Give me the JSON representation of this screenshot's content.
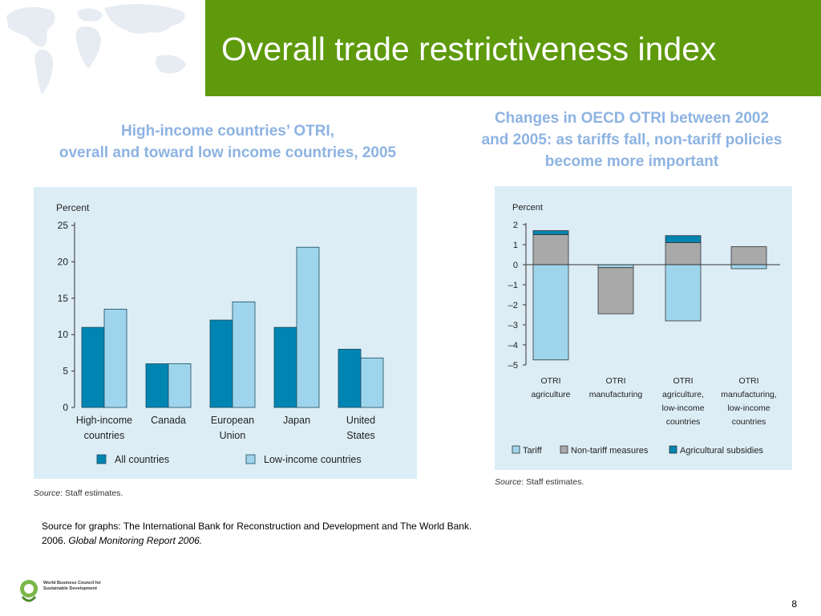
{
  "slide": {
    "title": "Overall trade restrictiveness index",
    "page_number": "8",
    "footer_source_prefix": "Source for graphs: The International Bank for Reconstruction and Development and The World Bank.",
    "footer_source_year": "2006.",
    "footer_source_italic": "Global Monitoring Report 2006.",
    "logo_line1": "World Business Council for",
    "logo_line2": "Sustainable Development",
    "colors": {
      "title_bar": "#5e9a0c",
      "heading": "#8db3e2",
      "panel_bg": "#dcedf6"
    }
  },
  "left_chart": {
    "heading_line1": "High-income countries’ OTRI,",
    "heading_line2": "overall and toward low income countries, 2005",
    "source_label": "Source",
    "source_text": ": Staff estimates."
  },
  "right_chart": {
    "heading_line1": "Changes in OECD OTRI between 2002",
    "heading_line2": "and 2005: as tariffs fall, non-tariff policies",
    "heading_line3": "become more important",
    "source_label": "Source",
    "source_text": ": Staff estimates."
  },
  "chart_data": [
    {
      "type": "bar",
      "ylabel": "Percent",
      "ylim": [
        0,
        25
      ],
      "yticks": [
        0,
        5,
        10,
        15,
        20,
        25
      ],
      "categories": [
        [
          "High-income",
          "countries"
        ],
        [
          "Canada"
        ],
        [
          "European",
          "Union"
        ],
        [
          "Japan"
        ],
        [
          "United",
          "States"
        ]
      ],
      "series": [
        {
          "name": "All countries",
          "color": "#0085b2",
          "values": [
            11,
            6,
            12,
            11,
            8
          ]
        },
        {
          "name": "Low-income countries",
          "color": "#9fd5ec",
          "values": [
            13.5,
            6,
            14.5,
            22,
            6.8
          ]
        }
      ],
      "legend": "bottom"
    },
    {
      "type": "bar",
      "stacked": true,
      "ylabel": "Percent",
      "ylim": [
        -5,
        2
      ],
      "yticks": [
        2,
        1,
        0,
        -1,
        -2,
        -3,
        -4,
        -5
      ],
      "ytick_labels": [
        "2",
        "1",
        "0",
        "–1",
        "–2",
        "–3",
        "–4",
        "–5"
      ],
      "categories": [
        [
          "OTRI",
          "agriculture"
        ],
        [
          "OTRI",
          "manufacturing"
        ],
        [
          "OTRI",
          "agriculture,",
          "low-income",
          "countries"
        ],
        [
          "OTRI",
          "manufacturing,",
          "low-income",
          "countries"
        ]
      ],
      "series": [
        {
          "name": "Tariff",
          "color": "#9fd5ec",
          "values": [
            -4.75,
            -0.15,
            -2.8,
            -0.2
          ]
        },
        {
          "name": "Non-tariff measures",
          "color": "#a9a9a9",
          "values": [
            1.5,
            -2.3,
            1.1,
            0.9
          ]
        },
        {
          "name": "Agricultural subsidies",
          "color": "#0085b2",
          "values": [
            0.2,
            0,
            0.35,
            0
          ]
        }
      ],
      "legend": "bottom"
    }
  ]
}
